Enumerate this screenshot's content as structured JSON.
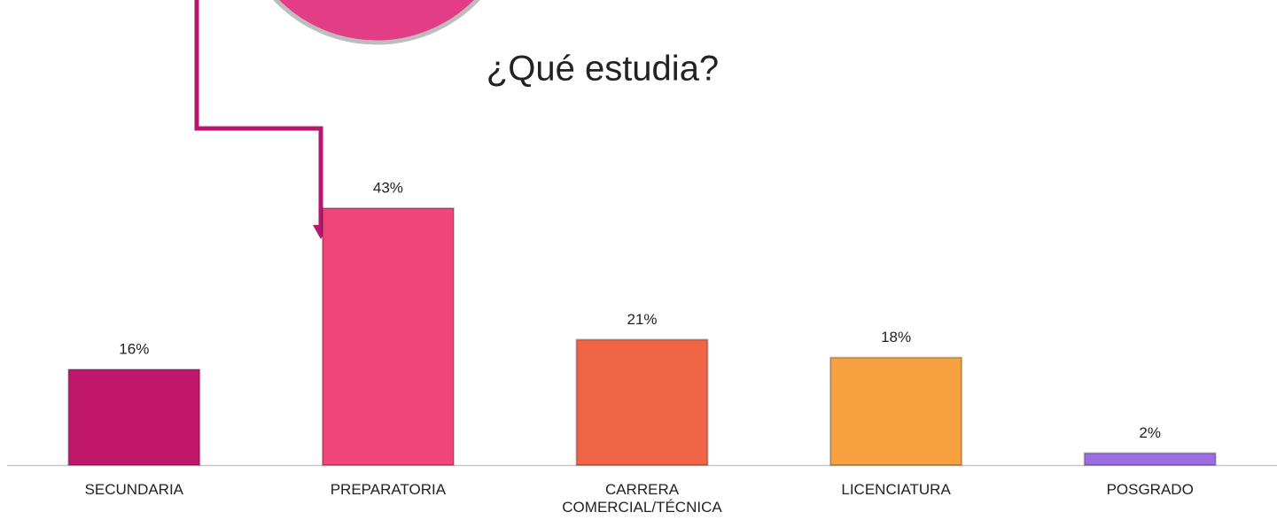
{
  "chart_data": {
    "type": "bar",
    "title": "¿Qué estudia?",
    "categories": [
      "SECUNDARIA",
      "PREPARATORIA",
      "CARRERA COMERCIAL/TÉCNICA",
      "LICENCIATURA",
      "POSGRADO"
    ],
    "values": [
      16,
      43,
      21,
      18,
      2
    ],
    "value_labels": [
      "16%",
      "43%",
      "21%",
      "18%",
      "2%"
    ],
    "colors": [
      "#c0166b",
      "#f0457a",
      "#f06446",
      "#f7a040",
      "#9b6ee0"
    ]
  }
}
